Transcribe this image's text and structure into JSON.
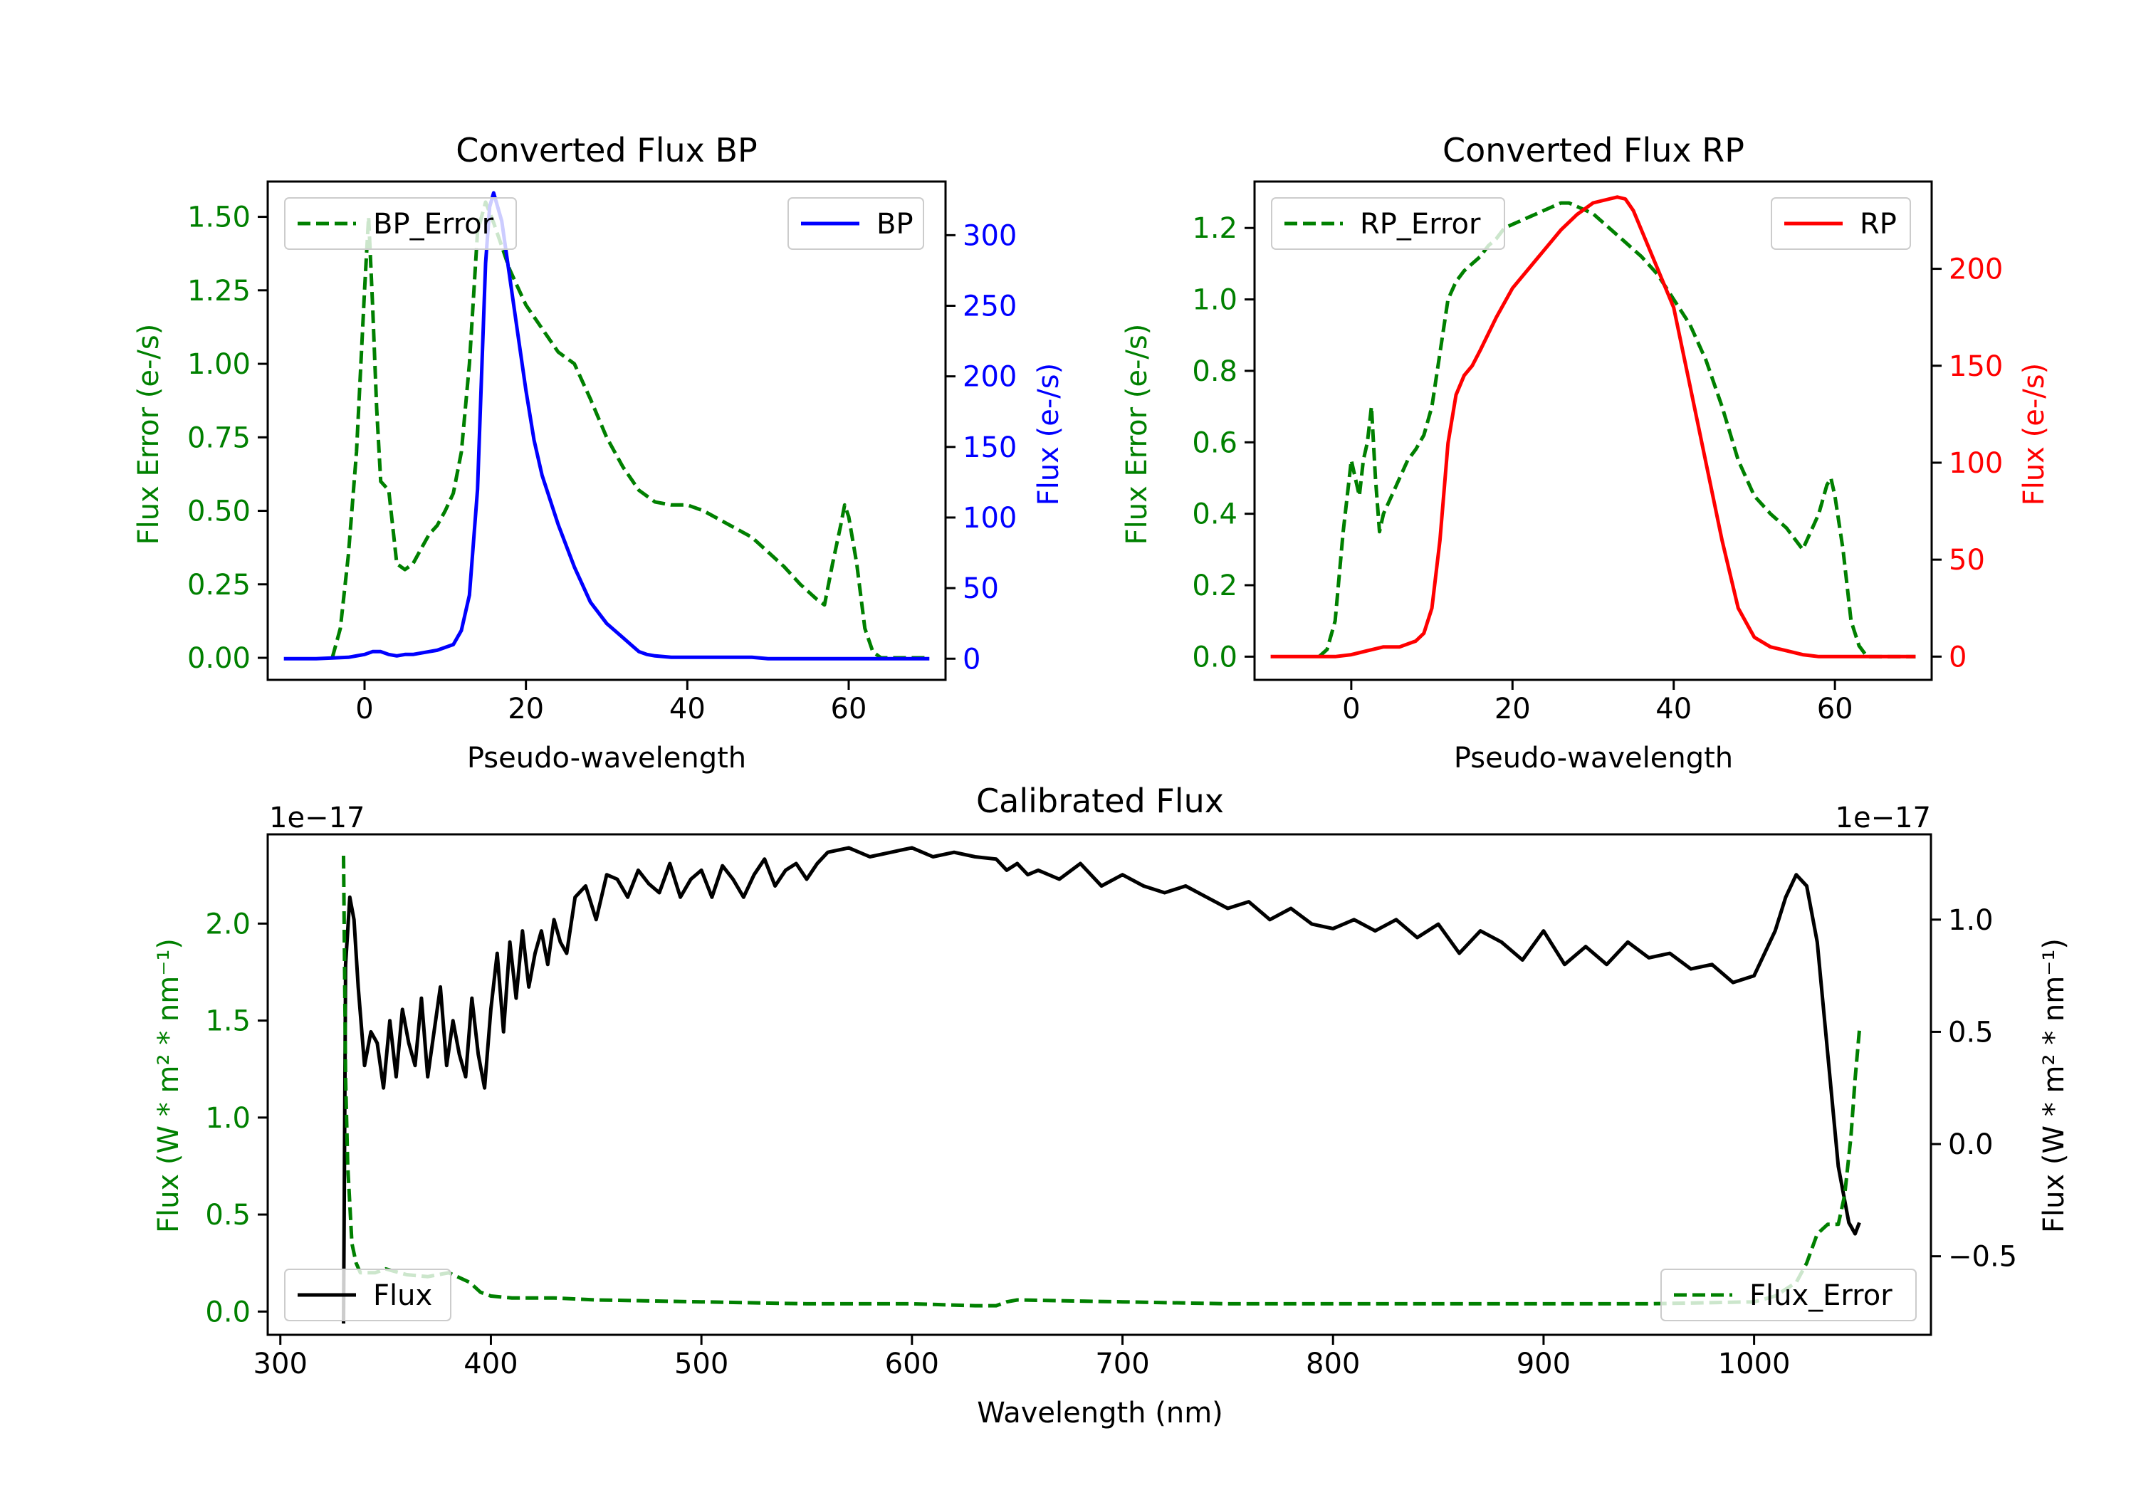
{
  "colors": {
    "green": "#008000",
    "blue": "#0000ff",
    "red": "#ff0000",
    "black": "#000000"
  },
  "chart_data": [
    {
      "id": "bp",
      "type": "line",
      "title": "Converted Flux BP",
      "xlabel": "Pseudo-wavelength",
      "ylabel_left": "Flux Error (e-/s)",
      "ylabel_right": "Flux (e-/s)",
      "xlim": [
        -12,
        72
      ],
      "ylim_left": [
        -0.075,
        1.62
      ],
      "ylim_right": [
        -15,
        338
      ],
      "xticks": [
        0,
        20,
        40,
        60
      ],
      "yticks_left": [
        0.0,
        0.25,
        0.5,
        0.75,
        1.0,
        1.25,
        1.5
      ],
      "yticks_left_labels": [
        "0.00",
        "0.25",
        "0.50",
        "0.75",
        "1.00",
        "1.25",
        "1.50"
      ],
      "yticks_right": [
        0,
        50,
        100,
        150,
        200,
        250,
        300
      ],
      "yticks_right_labels": [
        "0",
        "50",
        "100",
        "150",
        "200",
        "250",
        "300"
      ],
      "series": [
        {
          "name": "BP_Error",
          "axis": "left",
          "color": "#008000",
          "dash": true,
          "x": [
            -4,
            -3,
            -2,
            -1,
            0,
            0.5,
            1,
            1.5,
            2,
            3,
            4,
            5,
            6,
            7,
            8,
            9,
            10,
            11,
            12,
            13,
            14,
            15,
            16,
            17,
            18,
            19,
            20,
            22,
            24,
            26,
            28,
            30,
            32,
            34,
            36,
            38,
            40,
            42,
            44,
            46,
            48,
            50,
            52,
            54,
            56,
            57,
            58,
            59,
            59.5,
            60,
            61,
            62,
            63,
            64,
            65,
            66,
            70
          ],
          "y": [
            0.0,
            0.1,
            0.35,
            0.7,
            1.25,
            1.5,
            1.2,
            0.85,
            0.6,
            0.57,
            0.32,
            0.3,
            0.32,
            0.37,
            0.42,
            0.45,
            0.5,
            0.56,
            0.7,
            1.0,
            1.45,
            1.55,
            1.48,
            1.4,
            1.32,
            1.26,
            1.2,
            1.12,
            1.04,
            1.0,
            0.88,
            0.75,
            0.65,
            0.57,
            0.53,
            0.52,
            0.52,
            0.5,
            0.47,
            0.44,
            0.41,
            0.36,
            0.31,
            0.25,
            0.2,
            0.18,
            0.32,
            0.45,
            0.52,
            0.48,
            0.32,
            0.1,
            0.02,
            0.0,
            0.0,
            0.0,
            0.0
          ]
        },
        {
          "name": "BP",
          "axis": "right",
          "color": "#0000ff",
          "dash": false,
          "x": [
            -10,
            -6,
            -2,
            0,
            1,
            2,
            3,
            4,
            5,
            6,
            7,
            8,
            9,
            10,
            11,
            12,
            13,
            14,
            14.5,
            15,
            15.5,
            16,
            17,
            18,
            19,
            20,
            21,
            22,
            24,
            26,
            28,
            30,
            32,
            34,
            35,
            36,
            38,
            40,
            42,
            44,
            46,
            48,
            50,
            52,
            54,
            56,
            58,
            60,
            62,
            64,
            66,
            68,
            70
          ],
          "y": [
            0,
            0,
            1,
            3,
            5,
            5,
            3,
            2,
            3,
            3,
            4,
            5,
            6,
            8,
            10,
            20,
            45,
            120,
            200,
            280,
            320,
            330,
            310,
            270,
            230,
            190,
            155,
            130,
            95,
            65,
            40,
            25,
            15,
            5,
            3,
            2,
            1,
            1,
            1,
            1,
            1,
            1,
            0,
            0,
            0,
            0,
            0,
            0,
            0,
            0,
            0,
            0,
            0
          ]
        }
      ]
    },
    {
      "id": "rp",
      "type": "line",
      "title": "Converted Flux RP",
      "xlabel": "Pseudo-wavelength",
      "ylabel_left": "Flux Error (e-/s)",
      "ylabel_right": "Flux (e-/s)",
      "xlim": [
        -12,
        72
      ],
      "ylim_left": [
        -0.065,
        1.33
      ],
      "ylim_right": [
        -12,
        245
      ],
      "xticks": [
        0,
        20,
        40,
        60
      ],
      "yticks_left": [
        0.0,
        0.2,
        0.4,
        0.6,
        0.8,
        1.0,
        1.2
      ],
      "yticks_left_labels": [
        "0.0",
        "0.2",
        "0.4",
        "0.6",
        "0.8",
        "1.0",
        "1.2"
      ],
      "yticks_right": [
        0,
        50,
        100,
        150,
        200
      ],
      "yticks_right_labels": [
        "0",
        "50",
        "100",
        "150",
        "200"
      ],
      "series": [
        {
          "name": "RP_Error",
          "axis": "left",
          "color": "#008000",
          "dash": true,
          "x": [
            -4,
            -3,
            -2,
            -1,
            0,
            0.5,
            1,
            1.5,
            2,
            2.5,
            3,
            3.5,
            4,
            5,
            6,
            7,
            8,
            9,
            10,
            11,
            12,
            13,
            14,
            15,
            16,
            17,
            18,
            19,
            20,
            21,
            22,
            23,
            24,
            25,
            26,
            27,
            28,
            29,
            30,
            31,
            32,
            34,
            36,
            38,
            40,
            42,
            44,
            46,
            48,
            50,
            52,
            54,
            55,
            56,
            57,
            58,
            59,
            59.5,
            60,
            61,
            62,
            63,
            64,
            65,
            66,
            70
          ],
          "y": [
            0.0,
            0.02,
            0.1,
            0.35,
            0.55,
            0.5,
            0.45,
            0.55,
            0.6,
            0.7,
            0.5,
            0.35,
            0.4,
            0.45,
            0.5,
            0.55,
            0.58,
            0.62,
            0.7,
            0.85,
            1.0,
            1.05,
            1.08,
            1.1,
            1.12,
            1.15,
            1.17,
            1.2,
            1.21,
            1.22,
            1.23,
            1.24,
            1.25,
            1.26,
            1.27,
            1.27,
            1.26,
            1.25,
            1.24,
            1.22,
            1.2,
            1.16,
            1.12,
            1.07,
            1.0,
            0.93,
            0.83,
            0.7,
            0.55,
            0.45,
            0.4,
            0.36,
            0.33,
            0.3,
            0.35,
            0.4,
            0.48,
            0.5,
            0.45,
            0.3,
            0.1,
            0.03,
            0.0,
            0.0,
            0.0,
            0.0
          ]
        },
        {
          "name": "RP",
          "axis": "right",
          "color": "#ff0000",
          "dash": false,
          "x": [
            -10,
            -6,
            -2,
            0,
            2,
            4,
            6,
            8,
            9,
            10,
            11,
            12,
            13,
            14,
            15,
            16,
            18,
            20,
            22,
            24,
            26,
            28,
            30,
            32,
            33,
            34,
            35,
            36,
            38,
            40,
            42,
            44,
            46,
            48,
            50,
            52,
            54,
            56,
            58,
            60,
            62,
            64,
            66,
            68,
            70
          ],
          "y": [
            0,
            0,
            0,
            1,
            3,
            5,
            5,
            8,
            12,
            25,
            60,
            110,
            135,
            145,
            150,
            158,
            175,
            190,
            200,
            210,
            220,
            228,
            234,
            236,
            237,
            236,
            230,
            220,
            200,
            180,
            140,
            100,
            60,
            25,
            10,
            5,
            3,
            1,
            0,
            0,
            0,
            0,
            0,
            0,
            0
          ]
        }
      ]
    },
    {
      "id": "cal",
      "type": "line",
      "title": "Calibrated Flux",
      "xlabel": "Wavelength (nm)",
      "ylabel_left": "Flux (W * m² * nm⁻¹)",
      "ylabel_right": "Flux (W * m² * nm⁻¹)",
      "offset_left": "1e−17",
      "offset_right": "1e−17",
      "xlim": [
        294,
        1084
      ],
      "ylim_left": [
        -0.12,
        2.46
      ],
      "ylim_right": [
        -0.85,
        1.38
      ],
      "xticks": [
        300,
        400,
        500,
        600,
        700,
        800,
        900,
        1000
      ],
      "yticks_left": [
        0.0,
        0.5,
        1.0,
        1.5,
        2.0
      ],
      "yticks_left_labels": [
        "0.0",
        "0.5",
        "1.0",
        "1.5",
        "2.0"
      ],
      "yticks_right": [
        -0.5,
        0.0,
        0.5,
        1.0
      ],
      "yticks_right_labels": [
        "−0.5",
        "0.0",
        "0.5",
        "1.0"
      ],
      "series": [
        {
          "name": "Flux",
          "axis": "right",
          "color": "#000000",
          "dash": false,
          "x": [
            330,
            331,
            333,
            335,
            337,
            340,
            343,
            346,
            349,
            352,
            355,
            358,
            361,
            364,
            367,
            370,
            373,
            376,
            379,
            382,
            385,
            388,
            391,
            394,
            397,
            400,
            403,
            406,
            409,
            412,
            415,
            418,
            421,
            424,
            427,
            430,
            433,
            436,
            440,
            445,
            450,
            455,
            460,
            465,
            470,
            475,
            480,
            485,
            490,
            495,
            500,
            505,
            510,
            515,
            520,
            525,
            530,
            535,
            540,
            545,
            550,
            555,
            560,
            570,
            580,
            590,
            600,
            605,
            610,
            620,
            630,
            640,
            645,
            650,
            655,
            660,
            670,
            680,
            690,
            700,
            710,
            720,
            730,
            740,
            750,
            760,
            770,
            780,
            790,
            800,
            810,
            820,
            830,
            840,
            850,
            860,
            870,
            880,
            890,
            900,
            910,
            920,
            930,
            940,
            950,
            960,
            970,
            980,
            990,
            1000,
            1005,
            1010,
            1015,
            1020,
            1025,
            1030,
            1035,
            1040,
            1045,
            1048,
            1050
          ],
          "y": [
            -0.8,
            0.8,
            1.1,
            1.0,
            0.7,
            0.35,
            0.5,
            0.45,
            0.25,
            0.55,
            0.3,
            0.6,
            0.45,
            0.35,
            0.65,
            0.3,
            0.5,
            0.7,
            0.35,
            0.55,
            0.4,
            0.3,
            0.65,
            0.4,
            0.25,
            0.6,
            0.85,
            0.5,
            0.9,
            0.65,
            0.95,
            0.7,
            0.85,
            0.95,
            0.8,
            1.0,
            0.9,
            0.85,
            1.1,
            1.15,
            1.0,
            1.2,
            1.18,
            1.1,
            1.22,
            1.16,
            1.12,
            1.25,
            1.1,
            1.18,
            1.22,
            1.1,
            1.24,
            1.18,
            1.1,
            1.2,
            1.27,
            1.15,
            1.22,
            1.25,
            1.18,
            1.25,
            1.3,
            1.32,
            1.28,
            1.3,
            1.32,
            1.3,
            1.28,
            1.3,
            1.28,
            1.27,
            1.22,
            1.25,
            1.2,
            1.22,
            1.18,
            1.25,
            1.15,
            1.2,
            1.15,
            1.12,
            1.15,
            1.1,
            1.05,
            1.08,
            1.0,
            1.05,
            0.98,
            0.96,
            1.0,
            0.95,
            1.0,
            0.92,
            0.98,
            0.85,
            0.95,
            0.9,
            0.82,
            0.95,
            0.8,
            0.88,
            0.8,
            0.9,
            0.83,
            0.85,
            0.78,
            0.8,
            0.72,
            0.75,
            0.85,
            0.95,
            1.1,
            1.2,
            1.15,
            0.9,
            0.4,
            -0.1,
            -0.35,
            -0.4,
            -0.35
          ]
        },
        {
          "name": "Flux_Error",
          "axis": "left",
          "color": "#008000",
          "dash": true,
          "x": [
            330,
            331,
            332,
            334,
            336,
            338,
            340,
            345,
            350,
            360,
            370,
            380,
            390,
            395,
            400,
            410,
            420,
            430,
            450,
            500,
            550,
            600,
            630,
            640,
            645,
            650,
            700,
            750,
            800,
            850,
            900,
            950,
            1000,
            1010,
            1020,
            1025,
            1030,
            1035,
            1040,
            1043,
            1046,
            1048,
            1050
          ],
          "y": [
            2.35,
            1.2,
            0.75,
            0.35,
            0.25,
            0.2,
            0.2,
            0.2,
            0.22,
            0.19,
            0.18,
            0.2,
            0.15,
            0.1,
            0.08,
            0.07,
            0.07,
            0.07,
            0.06,
            0.05,
            0.04,
            0.04,
            0.03,
            0.03,
            0.05,
            0.06,
            0.05,
            0.04,
            0.04,
            0.04,
            0.04,
            0.04,
            0.05,
            0.08,
            0.15,
            0.25,
            0.4,
            0.45,
            0.45,
            0.6,
            0.9,
            1.2,
            1.45
          ]
        }
      ]
    }
  ]
}
